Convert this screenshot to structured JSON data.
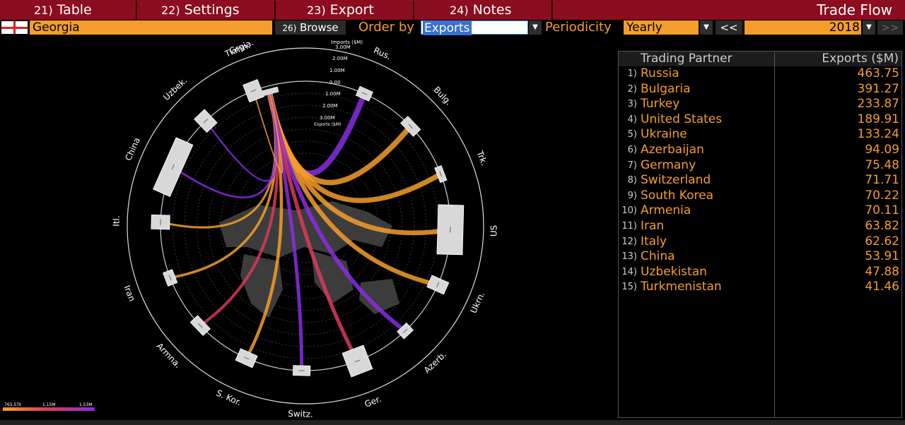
{
  "menu": {
    "items": [
      {
        "num": "21)",
        "label": "Table"
      },
      {
        "num": "22)",
        "label": "Settings"
      },
      {
        "num": "23)",
        "label": "Export"
      },
      {
        "num": "24)",
        "label": "Notes"
      }
    ],
    "title": "Trade Flow"
  },
  "toolbar": {
    "country": "Georgia",
    "browse_num": "26)",
    "browse_label": "Browse",
    "order_label": "Order by",
    "order_value": "Exports",
    "periodicity_label": "Periodicity",
    "periodicity_value": "Yearly",
    "prev_label": "<<",
    "year": "2018",
    "next_label": ">>"
  },
  "chart": {
    "center_label": "Grgia.",
    "scale_ticks": [
      "3.00M",
      "2.00M",
      "1.00M",
      "0.00",
      "1.00M",
      "2.00M",
      "3.00M"
    ],
    "imports_label": "Imports ($M)",
    "exports_label": "Exports ($M)",
    "legend": {
      "min": "763.57k",
      "mid": "1.15M",
      "max": "1.53M"
    },
    "colors": {
      "low": "#f59d2a",
      "mid": "#d73a5a",
      "high": "#8a2be2"
    },
    "partners": [
      {
        "label": "Rus.",
        "flow_color": "#8a2be2"
      },
      {
        "label": "Bulg.",
        "flow_color": "#f59d2a"
      },
      {
        "label": "Trk.",
        "flow_color": "#f59d2a"
      },
      {
        "label": "US",
        "flow_color": "#f59d2a"
      },
      {
        "label": "Ukrn.",
        "flow_color": "#f59d2a"
      },
      {
        "label": "Azerb.",
        "flow_color": "#8a2be2"
      },
      {
        "label": "Ger.",
        "flow_color": "#d73a5a"
      },
      {
        "label": "Switz.",
        "flow_color": "#8a2be2"
      },
      {
        "label": "S. Kor.",
        "flow_color": "#f59d2a"
      },
      {
        "label": "Armna.",
        "flow_color": "#d73a5a"
      },
      {
        "label": "Iran",
        "flow_color": "#f59d2a"
      },
      {
        "label": "Itl.",
        "flow_color": "#f59d2a"
      },
      {
        "label": "China",
        "flow_color": "#8a2be2"
      },
      {
        "label": "Uzbek.",
        "flow_color": "#8a2be2"
      },
      {
        "label": "Tkmn.",
        "flow_color": "#f59d2a"
      }
    ]
  },
  "table": {
    "headers": {
      "partner": "Trading Partner",
      "exports": "Exports ($M)"
    },
    "rows": [
      {
        "idx": "1)",
        "name": "Russia",
        "value": "463.75"
      },
      {
        "idx": "2)",
        "name": "Bulgaria",
        "value": "391.27"
      },
      {
        "idx": "3)",
        "name": "Turkey",
        "value": "233.87"
      },
      {
        "idx": "4)",
        "name": "United States",
        "value": "189.91"
      },
      {
        "idx": "5)",
        "name": "Ukraine",
        "value": "133.24"
      },
      {
        "idx": "6)",
        "name": "Azerbaijan",
        "value": "94.09"
      },
      {
        "idx": "7)",
        "name": "Germany",
        "value": "75.48"
      },
      {
        "idx": "8)",
        "name": "Switzerland",
        "value": "71.71"
      },
      {
        "idx": "9)",
        "name": "South Korea",
        "value": "70.22"
      },
      {
        "idx": "10)",
        "name": "Armenia",
        "value": "70.11"
      },
      {
        "idx": "11)",
        "name": "Iran",
        "value": "63.82"
      },
      {
        "idx": "12)",
        "name": "Italy",
        "value": "62.62"
      },
      {
        "idx": "13)",
        "name": "China",
        "value": "53.91"
      },
      {
        "idx": "14)",
        "name": "Uzbekistan",
        "value": "47.88"
      },
      {
        "idx": "15)",
        "name": "Turkmenistan",
        "value": "41.46"
      }
    ]
  }
}
